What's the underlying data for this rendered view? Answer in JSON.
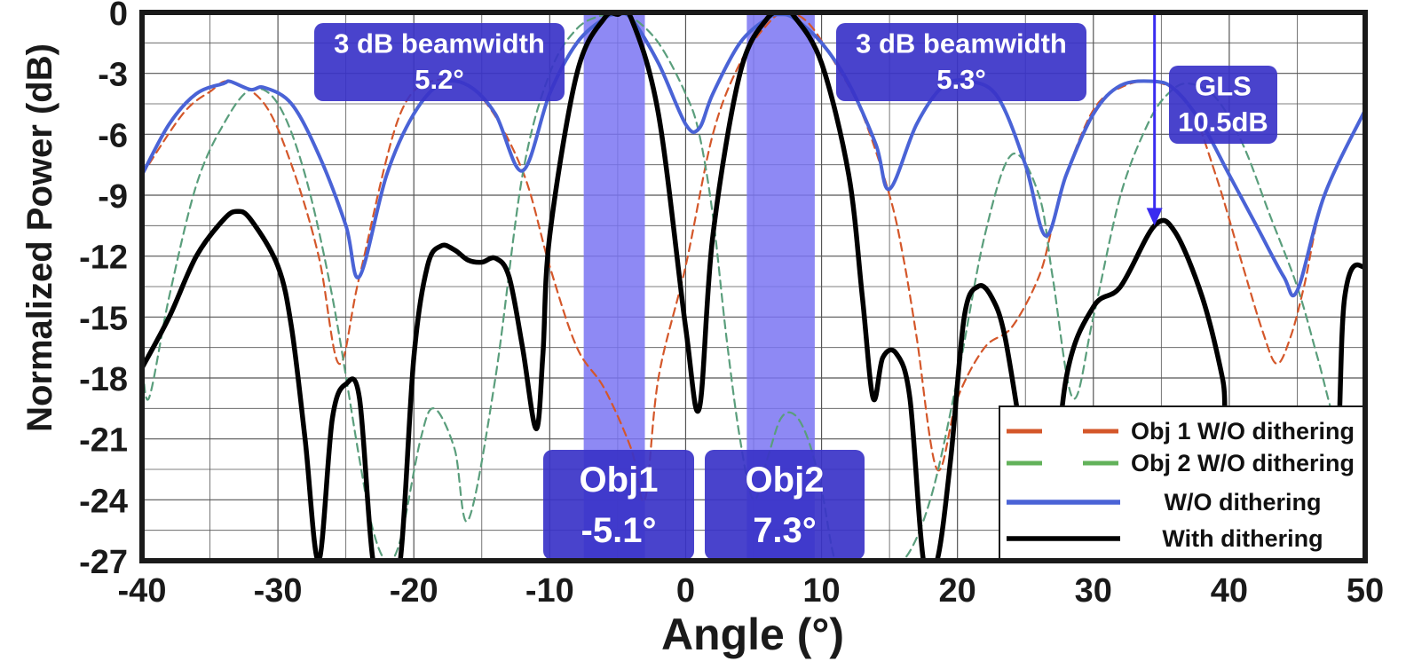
{
  "chart_data": {
    "type": "line",
    "xlabel": "Angle (°)",
    "ylabel": "Normalized Power (dB)",
    "xlim": [
      -40,
      50
    ],
    "ylim": [
      -27,
      0
    ],
    "xticks": [
      -40,
      -30,
      -20,
      -10,
      0,
      10,
      20,
      30,
      40,
      50
    ],
    "yticks": [
      0,
      -3,
      -6,
      -9,
      -12,
      -15,
      -18,
      -21,
      -24,
      -27
    ],
    "grid": true,
    "legend_position": "bottom-right",
    "colors": {
      "obj1": "#d4572a",
      "obj2": "#5a9e7c",
      "without": "#4a63d6",
      "with": "#000000",
      "band": "#7a74f2",
      "box": "#3a33c8"
    },
    "series": [
      {
        "name": "Obj 1 W/O dithering",
        "style": "dashed",
        "x": [
          -40,
          -37,
          -35,
          -33.5,
          -31,
          -29,
          -27,
          -25.5,
          -24,
          -21,
          -18,
          -15,
          -12,
          -10,
          -8,
          -6,
          -4,
          -3,
          -2,
          0,
          2,
          4,
          6,
          7.3,
          9,
          11,
          13,
          15,
          16,
          17,
          18.5,
          20,
          22,
          24,
          26,
          27,
          28,
          30,
          32,
          34.5,
          37,
          39,
          41,
          42.5,
          43.5,
          44.5,
          45.5,
          47,
          50
        ],
        "y": [
          -8,
          -5,
          -3.9,
          -3.4,
          -4.5,
          -7.5,
          -12,
          -17.3,
          -13,
          -5,
          -3.3,
          -4.2,
          -7.8,
          -12.5,
          -16.5,
          -18.5,
          -21.5,
          -24,
          -18,
          -12.5,
          -6,
          -2.5,
          -0.6,
          0,
          -0.5,
          -2.5,
          -5,
          -9,
          -12,
          -16,
          -22.5,
          -19,
          -16.5,
          -15.5,
          -13,
          -10.5,
          -8,
          -4.8,
          -3.7,
          -3.4,
          -4.5,
          -8,
          -12.5,
          -15.8,
          -17.3,
          -16,
          -13.5,
          -9,
          -4.8
        ]
      },
      {
        "name": "Obj 2 W/O dithering",
        "style": "dashed",
        "x": [
          -40,
          -39.5,
          -38,
          -36,
          -34,
          -32,
          -30,
          -28,
          -26,
          -24,
          -23,
          -22,
          -21,
          -19.5,
          -18.5,
          -17,
          -16,
          -14,
          -12,
          -10,
          -8,
          -6,
          -5.1,
          -4,
          -2,
          0,
          1,
          2,
          3,
          4,
          5,
          6,
          7,
          8,
          9,
          10,
          11,
          12,
          14,
          16,
          18,
          20,
          22,
          24,
          26,
          27,
          28.5,
          30,
          32,
          34,
          35.5,
          37,
          39,
          41,
          43,
          45,
          46.5,
          48,
          50
        ],
        "y": [
          -17,
          -19,
          -14,
          -8.5,
          -5.5,
          -3.8,
          -4.5,
          -8,
          -14,
          -22,
          -25.5,
          -27,
          -26,
          -21,
          -19.5,
          -21.5,
          -25,
          -18,
          -8,
          -3,
          -0.8,
          -0.1,
          0,
          -0.2,
          -1.5,
          -4,
          -6,
          -10,
          -16,
          -21,
          -24,
          -22,
          -20,
          -19.8,
          -21,
          -23.5,
          -27,
          -27,
          -27,
          -27,
          -24,
          -18,
          -11,
          -7,
          -9,
          -13,
          -19,
          -15,
          -9,
          -5.5,
          -4,
          -3.5,
          -4.2,
          -6.5,
          -10,
          -13.5,
          -17,
          -20.5,
          -22
        ]
      },
      {
        "name": "W/O dithering",
        "style": "solid",
        "x": [
          -40,
          -38,
          -36,
          -34,
          -33.5,
          -32,
          -31,
          -29,
          -27,
          -25,
          -24,
          -22,
          -20,
          -18,
          -16,
          -14,
          -12,
          -10,
          -8,
          -6,
          -5,
          -4,
          -2,
          0,
          1,
          2,
          4,
          6,
          7,
          8,
          10,
          12,
          14,
          15,
          17,
          19,
          21,
          23,
          25,
          26.5,
          28,
          30,
          32,
          34.5,
          36,
          38,
          40,
          42,
          44,
          45,
          47,
          50
        ],
        "y": [
          -8,
          -5.5,
          -4,
          -3.5,
          -3.4,
          -3.8,
          -3.7,
          -4.5,
          -7,
          -10.5,
          -13,
          -8,
          -5,
          -3.5,
          -3.6,
          -5,
          -7.8,
          -4,
          -1.5,
          -0.3,
          -0.1,
          -0.3,
          -2.5,
          -5.5,
          -5.7,
          -4,
          -1.5,
          -0.3,
          -0.1,
          -0.3,
          -1.5,
          -3.5,
          -6.5,
          -8.7,
          -5.5,
          -3.6,
          -3.4,
          -4.2,
          -7.5,
          -11,
          -8,
          -5,
          -3.6,
          -3.4,
          -3.8,
          -5.5,
          -8,
          -10.5,
          -13,
          -13.7,
          -9,
          -4.8
        ]
      },
      {
        "name": "With dithering",
        "style": "solid",
        "x": [
          -40,
          -38,
          -36,
          -34,
          -33,
          -32,
          -30,
          -29,
          -28,
          -27,
          -26,
          -25,
          -24,
          -23,
          -22,
          -21,
          -20,
          -19,
          -18,
          -17,
          -16,
          -15,
          -14,
          -13,
          -12,
          -11,
          -10.5,
          -10,
          -8,
          -6,
          -5,
          -4,
          -2,
          0,
          1,
          2,
          4,
          6,
          7.3,
          8,
          10,
          12,
          13,
          13.8,
          14.5,
          15.5,
          16.5,
          17.5,
          18.5,
          19.5,
          20.5,
          21.5,
          22.5,
          23.5,
          25,
          26.5,
          28,
          30,
          32,
          34.5,
          36,
          38,
          39.5,
          40.5,
          47,
          48.5,
          50
        ],
        "y": [
          -17.5,
          -15,
          -12,
          -10.2,
          -9.8,
          -10.2,
          -12.5,
          -15.5,
          -21,
          -27,
          -20,
          -18.3,
          -19,
          -27,
          -27,
          -27,
          -17,
          -12.5,
          -11.5,
          -11.7,
          -12.2,
          -12.3,
          -12.1,
          -13,
          -16.5,
          -20.5,
          -16.8,
          -11,
          -3,
          -0.3,
          -0.1,
          -0.3,
          -5,
          -15.5,
          -19.5,
          -11,
          -3,
          -0.3,
          0,
          -0.2,
          -2.5,
          -8,
          -14,
          -19,
          -17,
          -16.8,
          -19,
          -27,
          -27,
          -22,
          -15,
          -13.5,
          -14,
          -16,
          -22,
          -27,
          -18,
          -14.5,
          -13.5,
          -10.5,
          -10.8,
          -14,
          -18,
          -22,
          -27,
          -14,
          -12.5
        ]
      }
    ],
    "annotations": {
      "beamwidth1_line1": "3 dB beamwidth",
      "beamwidth1_line2": "5.2°",
      "beamwidth2_line1": "3 dB beamwidth",
      "beamwidth2_line2": "5.3°",
      "gls_line1": "GLS",
      "gls_line2": "10.5dB",
      "obj1_line1": "Obj1",
      "obj1_line2": "-5.1°",
      "obj2_line1": "Obj2",
      "obj2_line2": "7.3°"
    },
    "bands": [
      {
        "x0": -7.5,
        "x1": -3
      },
      {
        "x0": 4.5,
        "x1": 9.5
      }
    ],
    "gls_arrow": {
      "x": 34.5,
      "y_from": 0,
      "y_to": -10.5
    }
  }
}
